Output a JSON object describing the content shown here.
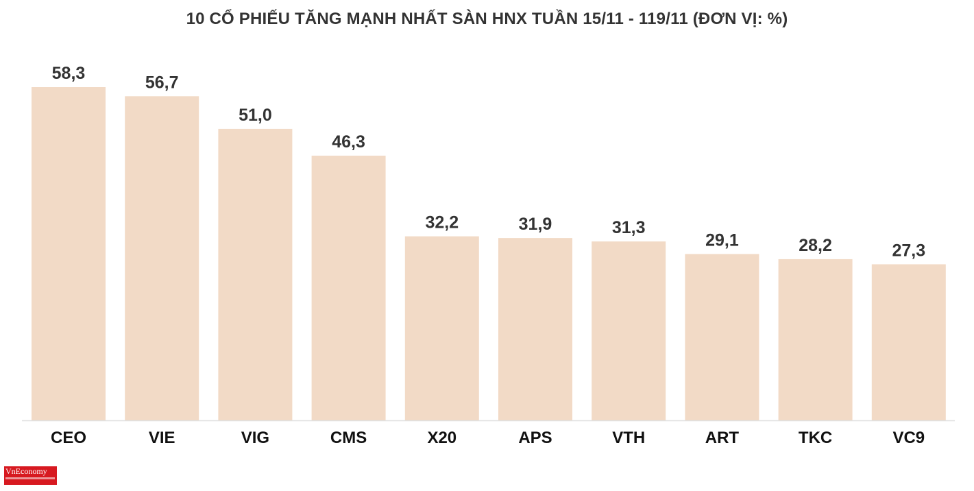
{
  "chart_data": {
    "type": "bar",
    "title": "10 CỔ PHIẾU TĂNG MẠNH NHẤT SÀN HNX TUẦN 15/11 - 119/11 (ĐƠN VỊ: %)",
    "categories": [
      "CEO",
      "VIE",
      "VIG",
      "CMS",
      "X20",
      "APS",
      "VTH",
      "ART",
      "TKC",
      "VC9"
    ],
    "values": [
      58.3,
      56.7,
      51.0,
      46.3,
      32.2,
      31.9,
      31.3,
      29.1,
      28.2,
      27.3
    ],
    "value_labels": [
      "58,3",
      "56,7",
      "51,0",
      "46,3",
      "32,2",
      "31,9",
      "31,3",
      "29,1",
      "28,2",
      "27,3"
    ],
    "xlabel": "",
    "ylabel": "",
    "ylim": [
      0,
      58.3
    ],
    "grid": false,
    "bar_color": "#f2dac6",
    "axis_color": "#e0e0e0"
  },
  "logo": {
    "text": "VnEconomy",
    "color": "#d71920"
  }
}
